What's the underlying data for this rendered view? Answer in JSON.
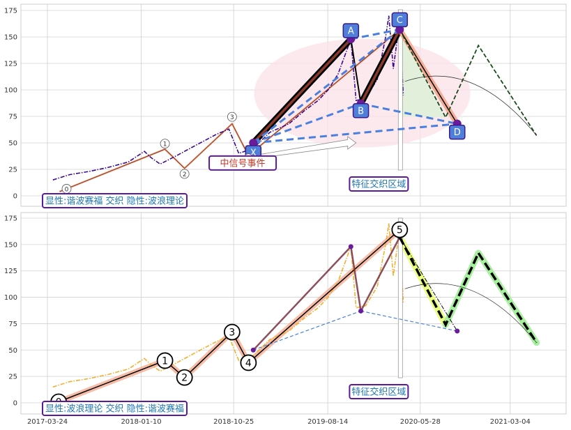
{
  "colors": {
    "grid": "#d0d0d0",
    "frame": "#cccccc",
    "price_top": "#3b0a8f",
    "price_bottom": "#f0b030",
    "harmonic_blue": "#4a7fdd",
    "harmonic_purple": "#6a1b9a",
    "label_box_fill": "#4f7fd8",
    "label_box_stroke": "#3a1a8a",
    "annotation_text": "#1f77b4",
    "annotation_border": "#5a1a9a",
    "event_text": "#c0392b",
    "wave_highlight": "#f4a080",
    "projection_green": "#a8f0a0",
    "projection_yellow": "#e8ff80",
    "ellipse_fill": "#fbe1e8",
    "triangle_fill": "#dff0d8"
  },
  "chart_data": [
    {
      "type": "line",
      "panel": "top",
      "yticks": [
        0,
        25,
        50,
        75,
        100,
        125,
        150,
        175
      ],
      "ylim": [
        -10,
        180
      ],
      "xlim": [
        "2017-03-24",
        "2021-06-08"
      ],
      "grid": true,
      "series": [
        {
          "style": "dash-dot",
          "color": "#3b0a8f",
          "x": [
            "2017-04-10",
            "2017-06-01",
            "2017-08-01",
            "2017-10-01",
            "2017-12-01",
            "2018-01-20",
            "2018-02-10",
            "2018-03-10",
            "2018-05-01",
            "2018-07-01",
            "2018-09-01",
            "2018-10-10",
            "2018-11-10",
            "2018-12-25",
            "2019-02-15",
            "2019-04-15",
            "2019-06-01",
            "2019-07-15",
            "2019-08-15",
            "2019-09-15",
            "2019-10-25",
            "2019-11-10",
            "2019-12-10",
            "2020-01-15",
            "2020-02-10",
            "2020-02-20",
            "2020-03-05",
            "2020-03-25",
            "2020-04-05"
          ],
          "y": [
            15,
            20,
            23,
            27,
            32,
            42,
            36,
            30,
            38,
            48,
            58,
            63,
            40,
            45,
            60,
            68,
            80,
            90,
            100,
            115,
            148,
            90,
            92,
            110,
            150,
            170,
            120,
            165,
            95
          ]
        }
      ],
      "harmonic_points": [
        {
          "label": "X",
          "x": "2018-12-25",
          "y": 50
        },
        {
          "label": "A",
          "x": "2019-10-25",
          "y": 148
        },
        {
          "label": "B",
          "x": "2019-11-25",
          "y": 87
        },
        {
          "label": "C",
          "x": "2020-03-25",
          "y": 157
        },
        {
          "label": "D",
          "x": "2020-09-20",
          "y": 68
        }
      ],
      "wave_points": [
        {
          "label": "0",
          "x": "2017-05-01",
          "y": 4
        },
        {
          "label": "1",
          "x": "2018-03-25",
          "y": 44
        },
        {
          "label": "2",
          "x": "2018-05-25",
          "y": 26
        },
        {
          "label": "3",
          "x": "2018-10-20",
          "y": 68
        },
        {
          "label": "4",
          "x": "2018-12-10",
          "y": 38
        }
      ],
      "projection": {
        "x": [
          "2020-03-25",
          "2020-08-15",
          "2020-11-25",
          "2021-05-25"
        ],
        "y": [
          157,
          74,
          142,
          57
        ]
      },
      "annotations": {
        "event": "中信号事件",
        "zone": "特征交织区域",
        "mode": "显性:谐波赛福 交织 隐性:波浪理论"
      }
    },
    {
      "type": "line",
      "panel": "bottom",
      "yticks": [
        0,
        25,
        50,
        75,
        100,
        125,
        150,
        175
      ],
      "ylim": [
        -10,
        180
      ],
      "xlim": [
        "2017-03-24",
        "2021-06-08"
      ],
      "xticks": [
        "2017-03-24",
        "2018-01-10",
        "2018-10-25",
        "2019-08-14",
        "2020-05-28",
        "2021-03-04"
      ],
      "grid": true,
      "series": [
        {
          "style": "dash-dot",
          "color": "#f0b030",
          "x": [
            "2017-04-10",
            "2017-06-01",
            "2017-08-01",
            "2017-10-01",
            "2017-12-01",
            "2018-01-20",
            "2018-02-10",
            "2018-03-10",
            "2018-05-01",
            "2018-07-01",
            "2018-09-01",
            "2018-10-10",
            "2018-11-10",
            "2018-12-25",
            "2019-02-15",
            "2019-04-15",
            "2019-06-01",
            "2019-07-15",
            "2019-08-15",
            "2019-09-15",
            "2019-10-25",
            "2019-11-10",
            "2019-12-10",
            "2020-01-15",
            "2020-02-10",
            "2020-02-20",
            "2020-03-05",
            "2020-03-25",
            "2020-04-05"
          ],
          "y": [
            15,
            20,
            23,
            27,
            32,
            42,
            36,
            30,
            38,
            48,
            58,
            63,
            40,
            45,
            60,
            68,
            80,
            90,
            100,
            115,
            148,
            90,
            92,
            110,
            150,
            170,
            120,
            165,
            95
          ]
        }
      ],
      "wave_points": [
        {
          "label": "0",
          "x": "2017-04-28",
          "y": 1
        },
        {
          "label": "1",
          "x": "2018-03-25",
          "y": 40
        },
        {
          "label": "2",
          "x": "2018-05-25",
          "y": 24
        },
        {
          "label": "3",
          "x": "2018-10-20",
          "y": 67
        },
        {
          "label": "4",
          "x": "2018-12-10",
          "y": 38
        },
        {
          "label": "5",
          "x": "2020-03-25",
          "y": 164
        }
      ],
      "harmonic_points": [
        {
          "x": "2018-12-25",
          "y": 50
        },
        {
          "x": "2019-10-25",
          "y": 148
        },
        {
          "x": "2019-11-25",
          "y": 87
        },
        {
          "x": "2020-03-25",
          "y": 157
        },
        {
          "x": "2020-09-20",
          "y": 68
        }
      ],
      "projection": {
        "x": [
          "2020-03-25",
          "2020-08-15",
          "2020-11-25",
          "2021-05-25"
        ],
        "y": [
          157,
          74,
          142,
          57
        ]
      },
      "annotations": {
        "zone": "特征交织区域",
        "mode": "显性:波浪理论 交织 隐性:谐波赛福"
      }
    }
  ]
}
